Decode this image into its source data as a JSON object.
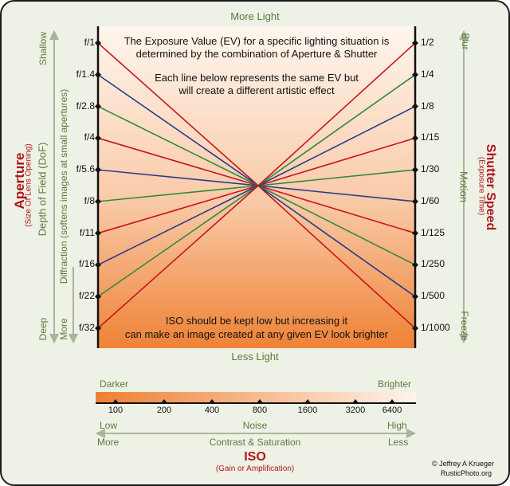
{
  "top_label": "More Light",
  "bottom_label": "Less Light",
  "intro_line1": "The Exposure Value (EV) for a specific lighting situation is",
  "intro_line2": "determined by the combination of Aperture & Shutter",
  "ev_line1": "Each line below represents the same EV but",
  "ev_line2": "will create a different artistic effect",
  "iso_note_line1": "ISO should be kept low but increasing it",
  "iso_note_line2": "can make an image created at any given EV look brighter",
  "aperture": {
    "title": "Aperture",
    "subtitle": "(Size Of Lens Opening)",
    "dof_label": "Depth of Field (DoF)",
    "dof_top": "Shallow",
    "dof_bottom": "Deep",
    "diffraction_label": "Diffraction (softens images at small apertures)",
    "diffraction_more": "More",
    "stops": [
      "f/1",
      "f/1.4",
      "f/2.8",
      "f/4",
      "f/5.6",
      "f/8",
      "f/11",
      "f/16",
      "f/22",
      "f/32"
    ]
  },
  "shutter": {
    "title": "Shutter Speed",
    "subtitle": "(Exposure Time)",
    "motion_label": "Motion",
    "motion_top": "Blur",
    "motion_bottom": "Freeze",
    "speeds": [
      "1/2",
      "1/4",
      "1/8",
      "1/15",
      "1/30",
      "1/60",
      "1/125",
      "1/250",
      "1/500",
      "1/1000"
    ]
  },
  "line_colors": [
    "#c8141b",
    "#2a3a8c",
    "#2e8a3c",
    "#c8141b",
    "#2a3a8c",
    "#2e8a3c",
    "#c8141b",
    "#2a3a8c",
    "#2e8a3c",
    "#c8141b"
  ],
  "iso": {
    "title": "ISO",
    "subtitle": "(Gain or Amplification)",
    "darker": "Darker",
    "brighter": "Brighter",
    "values": [
      "100",
      "200",
      "400",
      "800",
      "1600",
      "3200",
      "6400"
    ],
    "noise_low": "Low",
    "noise_label": "Noise",
    "noise_high": "High",
    "contrast_more": "More",
    "contrast_label": "Contrast & Saturation",
    "contrast_less": "Less"
  },
  "credit_line1": "© Jeffrey A Krueger",
  "credit_line2": "RusticPhoto.org"
}
